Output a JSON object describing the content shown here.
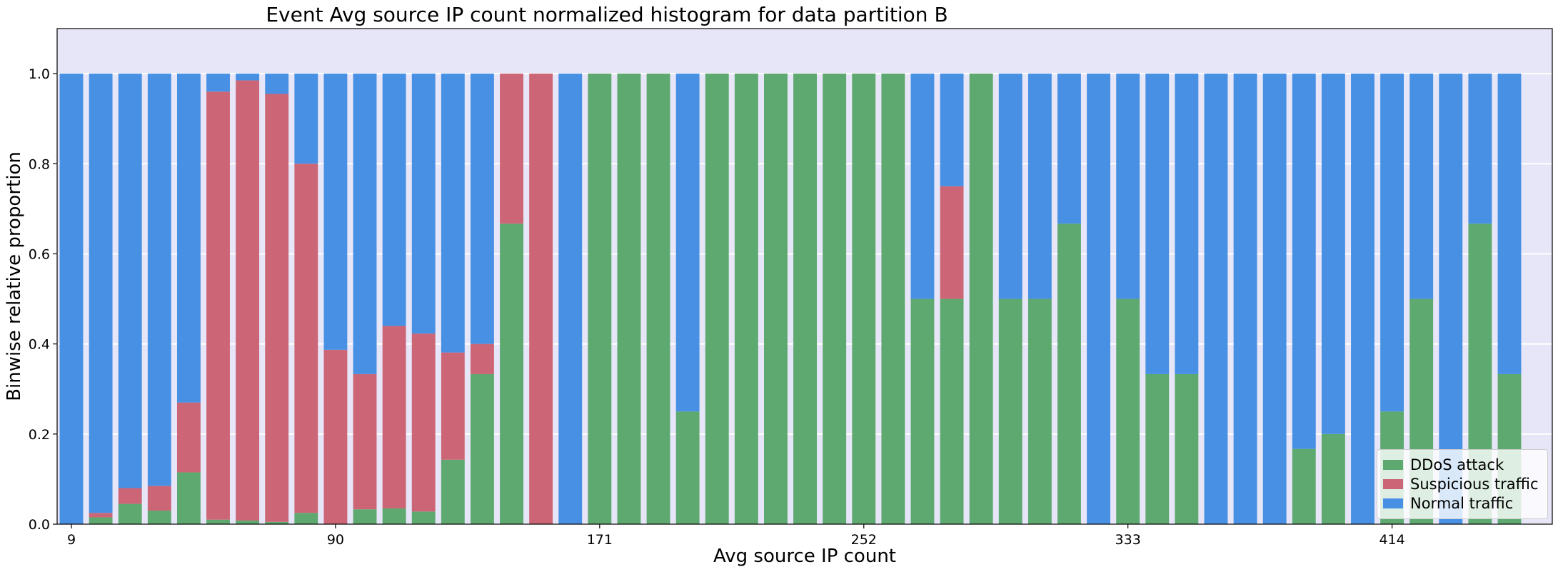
{
  "chart_data": {
    "type": "bar",
    "stacked": true,
    "title": "Event Avg source IP count normalized histogram for data partition B",
    "xlabel": "Avg source IP count",
    "ylabel": "Binwise relative proportion",
    "ylim": [
      0,
      1.1
    ],
    "yticks": [
      "0.0",
      "0.2",
      "0.4",
      "0.6",
      "0.8",
      "1.0"
    ],
    "xtick_labels": [
      "9",
      "90",
      "171",
      "252",
      "333",
      "414"
    ],
    "bin_start": 9,
    "bin_width": 9,
    "background_color": "#e6e6f8",
    "grid": true,
    "legend_position": "lower right",
    "series": [
      {
        "name": "DDoS attack",
        "color": "#5ea96f",
        "values": [
          0.0,
          0.015,
          0.045,
          0.03,
          0.115,
          0.01,
          0.008,
          0.005,
          0.025,
          0.0,
          0.033,
          0.035,
          0.028,
          0.143,
          0.333,
          0.667,
          0.0,
          0.0,
          1.0,
          1.0,
          1.0,
          0.25,
          1.0,
          1.0,
          1.0,
          1.0,
          1.0,
          1.0,
          1.0,
          0.5,
          0.5,
          1.0,
          0.5,
          0.5,
          0.667,
          0.0,
          0.5,
          0.333,
          0.333,
          0.0,
          0.0,
          0.0,
          0.167,
          0.2,
          0.0,
          0.25,
          0.5,
          0.0,
          0.667,
          0.333
        ]
      },
      {
        "name": "Suspicious traffic",
        "color": "#cc6677",
        "values": [
          0.0,
          0.01,
          0.035,
          0.055,
          0.155,
          0.95,
          0.977,
          0.95,
          0.775,
          0.387,
          0.3,
          0.405,
          0.395,
          0.238,
          0.067,
          0.333,
          1.0,
          0.0,
          0.0,
          0.0,
          0.0,
          0.0,
          0.0,
          0.0,
          0.0,
          0.0,
          0.0,
          0.0,
          0.0,
          0.0,
          0.25,
          0.0,
          0.0,
          0.0,
          0.0,
          0.0,
          0.0,
          0.0,
          0.0,
          0.0,
          0.0,
          0.0,
          0.0,
          0.0,
          0.0,
          0.0,
          0.0,
          0.0,
          0.0,
          0.0
        ]
      },
      {
        "name": "Normal traffic",
        "color": "#4790e4",
        "values": [
          1.0,
          0.975,
          0.92,
          0.915,
          0.73,
          0.04,
          0.015,
          0.045,
          0.2,
          0.613,
          0.667,
          0.56,
          0.577,
          0.619,
          0.6,
          0.0,
          0.0,
          1.0,
          0.0,
          0.0,
          0.0,
          0.75,
          0.0,
          0.0,
          0.0,
          0.0,
          0.0,
          0.0,
          0.0,
          0.5,
          0.25,
          0.0,
          0.5,
          0.5,
          0.333,
          1.0,
          0.5,
          0.667,
          0.667,
          1.0,
          1.0,
          1.0,
          0.833,
          0.8,
          1.0,
          0.75,
          0.5,
          1.0,
          0.333,
          0.667
        ]
      }
    ]
  }
}
